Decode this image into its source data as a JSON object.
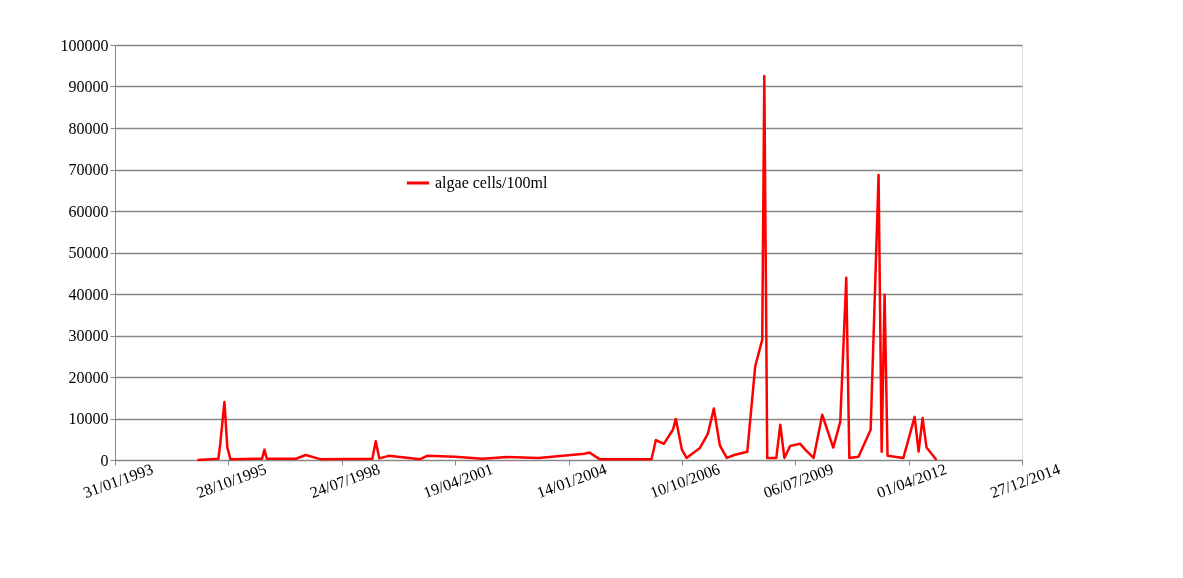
{
  "chart_data": {
    "type": "line",
    "x": [
      "1995-01-28",
      "1995-08-01",
      "1995-08-18",
      "1995-09-23",
      "1995-10-19",
      "1995-11-15",
      "1996-08-20",
      "1996-09-10",
      "1996-10-01",
      "1997-06-15",
      "1997-09-09",
      "1998-01-15",
      "1999-04-20",
      "1999-05-20",
      "1999-06-20",
      "1999-09-11",
      "2000-06-15",
      "2000-08-15",
      "2001-04-19",
      "2001-12-15",
      "2002-07-22",
      "2003-04-24",
      "2004-06-03",
      "2004-07-17",
      "2004-08-30",
      "2004-10-15",
      "2006-01-15",
      "2006-02-23",
      "2006-05-04",
      "2006-07-23",
      "2006-08-18",
      "2006-10-10",
      "2006-11-20",
      "2007-03-18",
      "2007-05-27",
      "2007-07-19",
      "2007-09-10",
      "2007-11-10",
      "2008-01-15",
      "2008-05-09",
      "2008-07-18",
      "2008-09-18",
      "2008-10-06",
      "2008-11-01",
      "2009-01-20",
      "2009-02-24",
      "2009-04-01",
      "2009-05-23",
      "2009-08-19",
      "2009-10-02",
      "2009-12-15",
      "2010-03-01",
      "2010-06-06",
      "2010-08-07",
      "2010-09-29",
      "2010-10-26",
      "2011-01-15",
      "2011-05-02",
      "2011-07-11",
      "2011-08-07",
      "2011-09-02",
      "2011-09-28",
      "2012-02-15",
      "2012-05-24",
      "2012-06-28",
      "2012-08-02",
      "2012-09-06",
      "2012-10-20",
      "2012-12-03"
    ],
    "series": [
      {
        "name": "algae cells/100ml",
        "color": "#ff0000",
        "values": [
          0,
          300,
          4000,
          14000,
          3000,
          200,
          300,
          2500,
          300,
          300,
          1200,
          200,
          300,
          4500,
          400,
          1000,
          200,
          1000,
          800,
          300,
          700,
          500,
          1500,
          1800,
          1000,
          200,
          200,
          4800,
          3900,
          7300,
          9900,
          2500,
          500,
          2900,
          6300,
          12400,
          3500,
          500,
          1200,
          2000,
          22600,
          29000,
          92500,
          500,
          500,
          8500,
          500,
          3400,
          3900,
          2500,
          500,
          10900,
          3000,
          9200,
          43900,
          500,
          800,
          7300,
          68700,
          2000,
          39800,
          1000,
          500,
          10400,
          2000,
          10100,
          3000,
          1500,
          0
        ]
      }
    ],
    "xlim": [
      "1993-01-31",
      "2014-12-27"
    ],
    "xticks": [
      {
        "value": "1993-01-31",
        "label": "31/01/1993"
      },
      {
        "value": "1995-10-28",
        "label": "28/10/1995"
      },
      {
        "value": "1998-07-24",
        "label": "24/07/1998"
      },
      {
        "value": "2001-04-19",
        "label": "19/04/2001"
      },
      {
        "value": "2004-01-14",
        "label": "14/01/2004"
      },
      {
        "value": "2006-10-10",
        "label": "10/10/2006"
      },
      {
        "value": "2009-07-06",
        "label": "06/07/2009"
      },
      {
        "value": "2012-04-01",
        "label": "01/04/2012"
      },
      {
        "value": "2014-12-27",
        "label": "27/12/2014"
      }
    ],
    "ylim": [
      0,
      100000
    ],
    "yticks": [
      0,
      10000,
      20000,
      30000,
      40000,
      50000,
      60000,
      70000,
      80000,
      90000,
      100000
    ],
    "grid": "y",
    "legend": "top",
    "marker": "none",
    "line_style": "solid"
  }
}
